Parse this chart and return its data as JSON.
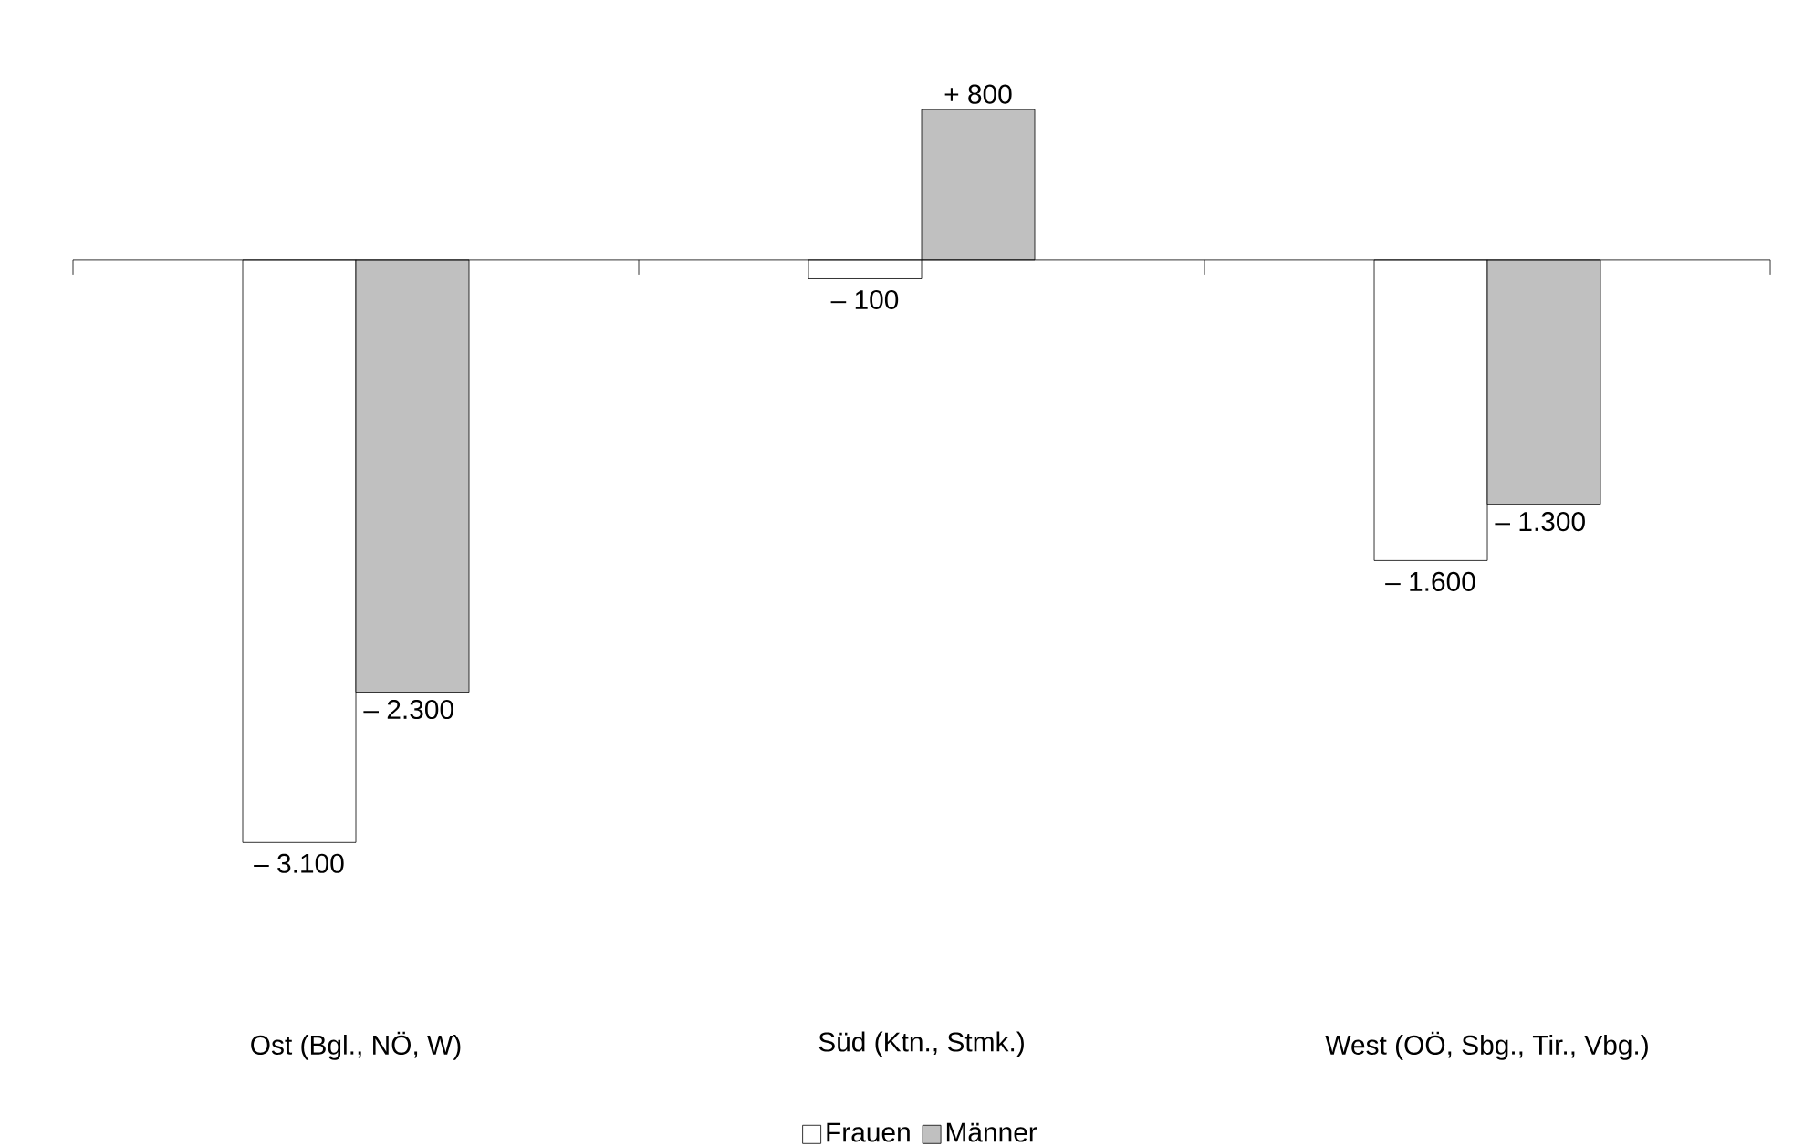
{
  "chart_data": {
    "type": "bar",
    "categories": [
      "Ost (Bgl., NÖ, W)",
      "Süd (Ktn., Stmk.)",
      "West (OÖ, Sbg., Tir., Vbg.)"
    ],
    "series": [
      {
        "name": "Frauen",
        "color": "#ffffff",
        "values": [
          -3100,
          -100,
          -1600
        ],
        "value_labels": [
          "– 3.100",
          "– 100",
          "– 1.600"
        ]
      },
      {
        "name": "Männer",
        "color": "#c0c0c0",
        "values": [
          -2300,
          800,
          -1300
        ],
        "value_labels": [
          "– 2.300",
          "+ 800",
          "– 1.300"
        ]
      }
    ],
    "legend": "bottom"
  }
}
